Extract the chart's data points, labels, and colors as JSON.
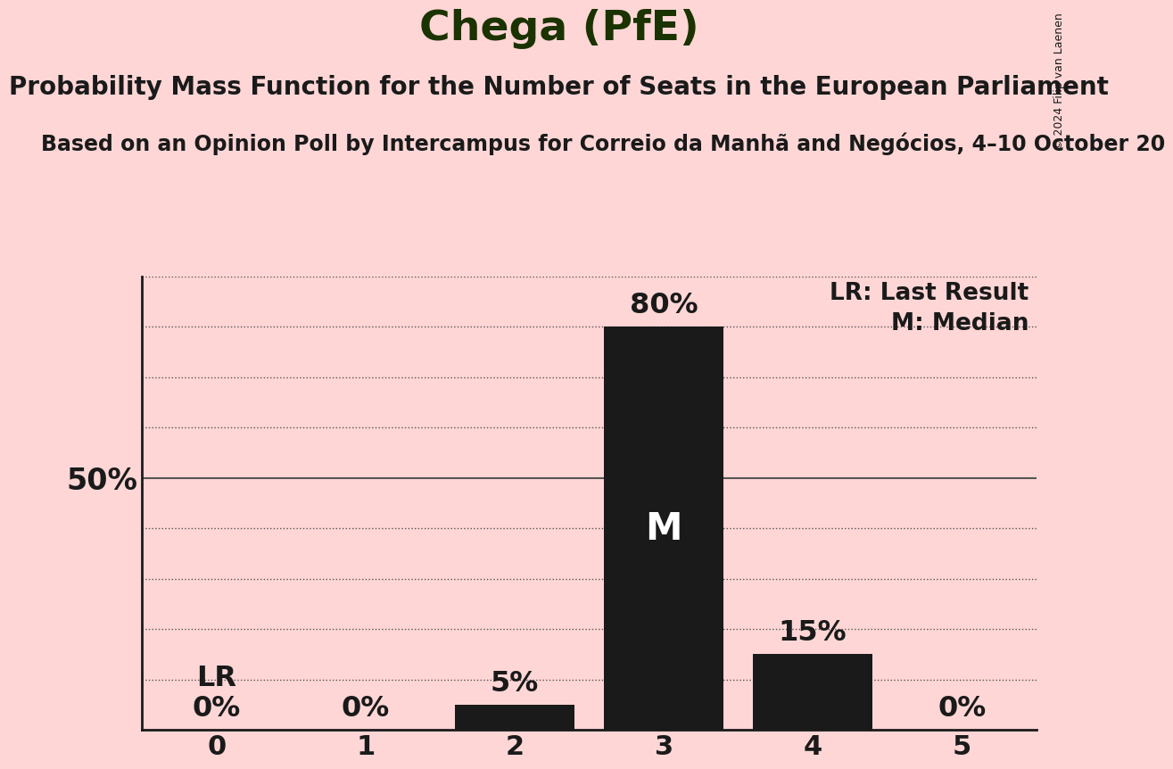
{
  "title": "Chega (PfE)",
  "subtitle": "Probability Mass Function for the Number of Seats in the European Parliament",
  "source_line": "Based on an Opinion Poll by Intercampus for Correio da Manhã and Negócios, 4–10 October 20",
  "copyright": "© 2024 Filip van Laenen",
  "categories": [
    0,
    1,
    2,
    3,
    4,
    5
  ],
  "values": [
    0,
    0,
    5,
    80,
    15,
    0
  ],
  "bar_color": "#1a1a1a",
  "background_color": "#ffd6d6",
  "text_color": "#1a1a1a",
  "title_color": "#1a3300",
  "median_bar": 3,
  "lr_bar": 0,
  "legend_lr": "LR: Last Result",
  "legend_m": "M: Median",
  "ylim": [
    0,
    90
  ],
  "yticks": [
    0,
    10,
    20,
    30,
    40,
    50,
    60,
    70,
    80,
    90
  ],
  "solid_yticks": [
    50
  ],
  "grid_color": "#555555",
  "title_fontsize": 34,
  "subtitle_fontsize": 20,
  "source_fontsize": 17,
  "bar_label_fontsize": 23,
  "axis_tick_fontsize": 22,
  "legend_fontsize": 19,
  "ylabel_fontsize": 24,
  "median_label_fontsize": 30
}
